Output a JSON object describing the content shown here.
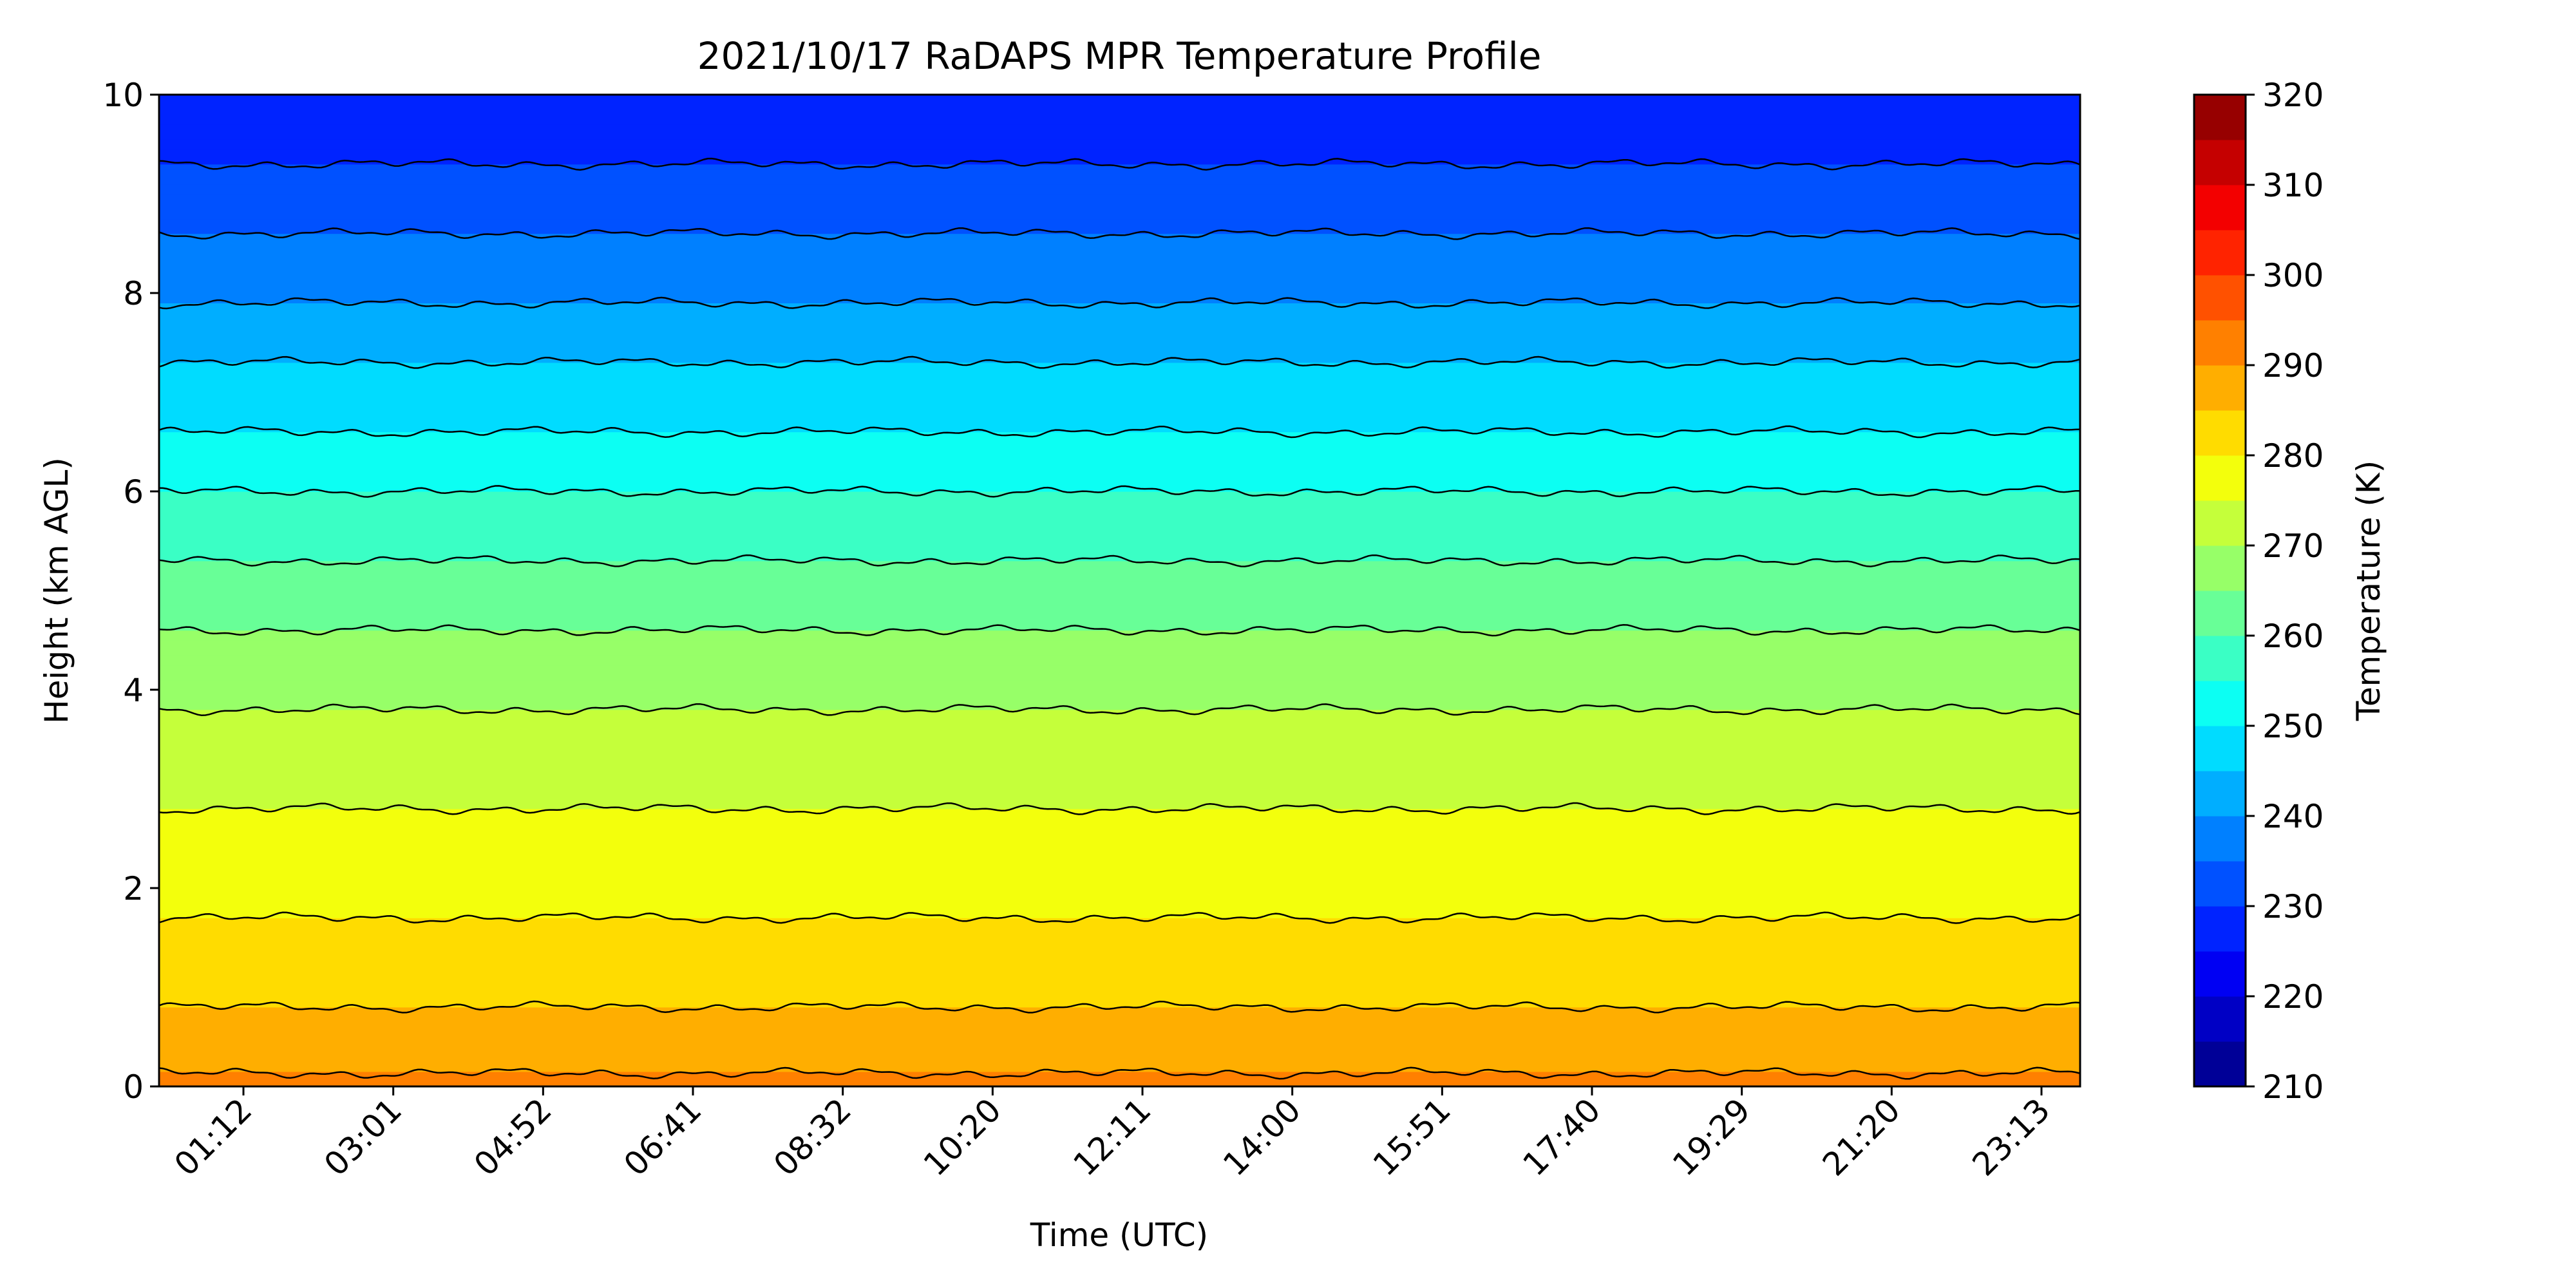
{
  "chart_data": {
    "type": "contourf",
    "title": "2021/10/17 RaDAPS MPR Temperature Profile",
    "xlabel": "Time (UTC)",
    "ylabel": "Height (km AGL)",
    "xticks": [
      "01:12",
      "03:01",
      "04:52",
      "06:41",
      "08:32",
      "10:20",
      "12:11",
      "14:00",
      "15:51",
      "17:40",
      "19:29",
      "21:20",
      "23:13"
    ],
    "yticks": [
      "0",
      "2",
      "4",
      "6",
      "8",
      "10"
    ],
    "ylim": [
      0,
      10
    ],
    "colorbar": {
      "label": "Temperature (K)",
      "range": [
        210,
        320
      ],
      "step": 5,
      "ticks": [
        "210",
        "220",
        "230",
        "240",
        "250",
        "260",
        "270",
        "280",
        "290",
        "300",
        "310",
        "320"
      ],
      "colormap": "jet"
    },
    "contour_levels_K": [
      215,
      220,
      225,
      230,
      235,
      240,
      245,
      250,
      255,
      260,
      265,
      270,
      275,
      280,
      285,
      290,
      295
    ],
    "profile_23_13_utc": [
      {
        "height_km": 0.0,
        "temperature_K": 291
      },
      {
        "height_km": 0.8,
        "temperature_K": 285
      },
      {
        "height_km": 1.7,
        "temperature_K": 280
      },
      {
        "height_km": 2.8,
        "temperature_K": 275
      },
      {
        "height_km": 3.8,
        "temperature_K": 270
      },
      {
        "height_km": 4.6,
        "temperature_K": 265
      },
      {
        "height_km": 5.3,
        "temperature_K": 260
      },
      {
        "height_km": 6.0,
        "temperature_K": 255
      },
      {
        "height_km": 6.6,
        "temperature_K": 250
      },
      {
        "height_km": 7.3,
        "temperature_K": 245
      },
      {
        "height_km": 7.9,
        "temperature_K": 240
      },
      {
        "height_km": 8.6,
        "temperature_K": 235
      },
      {
        "height_km": 9.3,
        "temperature_K": 230
      },
      {
        "height_km": 10.0,
        "temperature_K": 227
      }
    ]
  }
}
